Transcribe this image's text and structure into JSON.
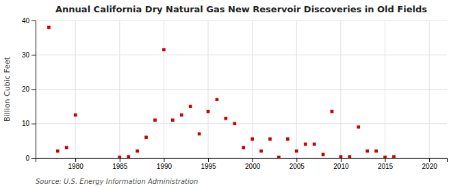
{
  "chart_data": {
    "type": "scatter",
    "title": "Annual California Dry Natural Gas New Reservoir Discoveries in Old Fields",
    "ylabel": "Billion Cubic Feet",
    "annotations": [
      "Source: U.S. Energy Information Administration"
    ],
    "color": "#cc0000",
    "marker": "square",
    "grid": true,
    "xlim": [
      1975.5,
      2022
    ],
    "ylim": [
      0,
      40
    ],
    "xticks": [
      1980,
      1985,
      1990,
      1995,
      2000,
      2005,
      2010,
      2015,
      2020
    ],
    "yticks": [
      0,
      10,
      20,
      30,
      40
    ],
    "x": [
      1977,
      1978,
      1979,
      1980,
      1985,
      1986,
      1987,
      1988,
      1989,
      1990,
      1991,
      1992,
      1993,
      1994,
      1995,
      1996,
      1997,
      1998,
      1999,
      2000,
      2001,
      2002,
      2003,
      2004,
      2005,
      2006,
      2007,
      2008,
      2009,
      2010,
      2011,
      2012,
      2013,
      2014,
      2015,
      2016
    ],
    "values": [
      38.0,
      2.0,
      3.0,
      12.5,
      0.2,
      0.3,
      2.0,
      6.0,
      11.0,
      31.5,
      11.0,
      12.5,
      15.0,
      7.0,
      13.5,
      17.0,
      11.5,
      10.0,
      3.0,
      5.5,
      2.0,
      5.5,
      0.2,
      5.5,
      2.0,
      4.0,
      4.0,
      1.0,
      13.5,
      0.3,
      0.3,
      9.0,
      2.0,
      2.0,
      0.2,
      0.3
    ]
  }
}
